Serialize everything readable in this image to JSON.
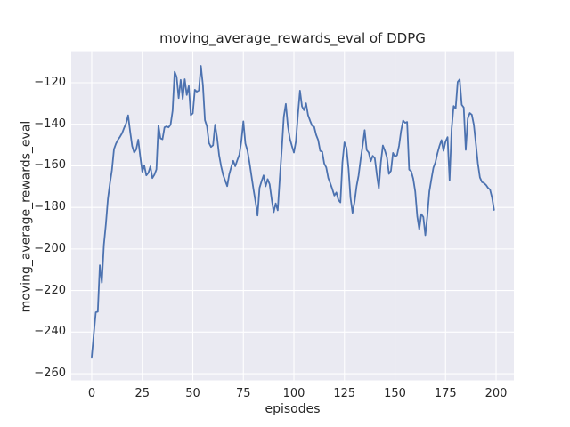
{
  "chart_data": {
    "type": "line",
    "title": "moving_average_rewards_eval of DDPG",
    "xlabel": "episodes",
    "ylabel": "moving_average_rewards_eval",
    "legend": null,
    "grid": true,
    "style": "seaborn-darkgrid",
    "xlim": [
      -10.13,
      208.8
    ],
    "ylim": [
      -263.2,
      -104.85
    ],
    "x_ticks": {
      "values": [
        0,
        25,
        50,
        75,
        100,
        125,
        150,
        175,
        200
      ],
      "labels": [
        "0",
        "25",
        "50",
        "75",
        "100",
        "125",
        "150",
        "175",
        "200"
      ]
    },
    "y_ticks": {
      "values": [
        -120,
        -140,
        -160,
        -180,
        -200,
        -220,
        -240,
        -260
      ],
      "labels": [
        "−120",
        "−140",
        "−160",
        "−180",
        "−200",
        "−220",
        "−240",
        "−260"
      ]
    },
    "series": [
      {
        "name": "moving_average_rewards_eval",
        "x_start": 0,
        "x_step": 1,
        "values": [
          -252,
          -241,
          -230.5,
          -230.2,
          -207.8,
          -216.2,
          -198,
          -188,
          -176,
          -168.5,
          -162,
          -152,
          -149.3,
          -147.4,
          -146,
          -144.3,
          -141.8,
          -139.6,
          -135.7,
          -143.5,
          -150.5,
          -153.6,
          -152.1,
          -147.4,
          -155.6,
          -162.8,
          -159.9,
          -164.6,
          -163.4,
          -160.3,
          -165.9,
          -164.3,
          -161.7,
          -140.5,
          -146.8,
          -147.2,
          -141.5,
          -141,
          -141.5,
          -140.2,
          -133.5,
          -114.7,
          -117.2,
          -127.4,
          -118.6,
          -127.8,
          -118.3,
          -125.9,
          -121.6,
          -135.6,
          -134.7,
          -123.4,
          -124.3,
          -123.7,
          -111.9,
          -121.2,
          -138,
          -141,
          -149,
          -150.9,
          -150.1,
          -140.2,
          -146.3,
          -154.8,
          -160.2,
          -164.4,
          -167.1,
          -169.8,
          -164.1,
          -160.6,
          -157.6,
          -160.2,
          -157.3,
          -154.7,
          -148.2,
          -138.6,
          -149.3,
          -152.6,
          -158.2,
          -164.8,
          -171.3,
          -177.2,
          -183.9,
          -170.6,
          -167.4,
          -164.6,
          -169.9,
          -166.4,
          -168.9,
          -176.1,
          -182.3,
          -178.1,
          -181.4,
          -166.2,
          -152.1,
          -136.4,
          -130.2,
          -140.8,
          -146.9,
          -150.4,
          -153.6,
          -148.2,
          -135.3,
          -123.8,
          -131.4,
          -133.2,
          -129.9,
          -135.6,
          -138.3,
          -140.7,
          -141.2,
          -145.1,
          -147.6,
          -152.8,
          -153.2,
          -158.9,
          -160.8,
          -165.9,
          -168.4,
          -171.2,
          -174.3,
          -172.8,
          -176.4,
          -177.6,
          -158.3,
          -148.7,
          -151.4,
          -161.2,
          -175.4,
          -182.6,
          -177.3,
          -169.8,
          -164.6,
          -156.9,
          -150.3,
          -142.8,
          -152.4,
          -153.6,
          -157.8,
          -155.2,
          -156.3,
          -164.2,
          -170.9,
          -158.4,
          -150.2,
          -152.7,
          -155.9,
          -163.9,
          -162.4,
          -153.8,
          -155.6,
          -154.9,
          -150.3,
          -143.2,
          -138.2,
          -139.3,
          -138.9,
          -161.8,
          -162.6,
          -166.2,
          -172.4,
          -184.3,
          -190.6,
          -183.2,
          -184.6,
          -193.4,
          -184.1,
          -172.3,
          -166.4,
          -160.9,
          -158.3,
          -153.9,
          -150.4,
          -147.6,
          -152.8,
          -148.3,
          -146.2,
          -166.9,
          -142.3,
          -131.2,
          -132.4,
          -119.6,
          -118.4,
          -130.6,
          -131.9,
          -152.3,
          -137.2,
          -134.6,
          -135.4,
          -140.2,
          -149.3,
          -158.9,
          -165.6,
          -167.8,
          -168.3,
          -169.2,
          -170.6,
          -171.4,
          -175.3,
          -181.2
        ]
      }
    ],
    "colors": {
      "line": "#4c72b0",
      "plot_background": "#eaeaf2",
      "grid": "#ffffff",
      "text": "#262626",
      "figure_background": "#ffffff"
    },
    "line_width": 1.8
  }
}
